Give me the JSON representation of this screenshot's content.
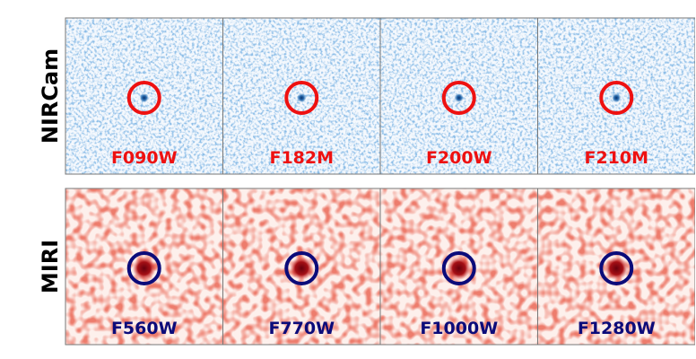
{
  "rows": [
    {
      "label": "NIRCam",
      "panels": [
        "F090W",
        "F182M",
        "F200W",
        "F210M"
      ]
    },
    {
      "label": "MIRI",
      "panels": [
        "F560W",
        "F770W",
        "F1000W",
        "F1280W"
      ]
    }
  ]
}
